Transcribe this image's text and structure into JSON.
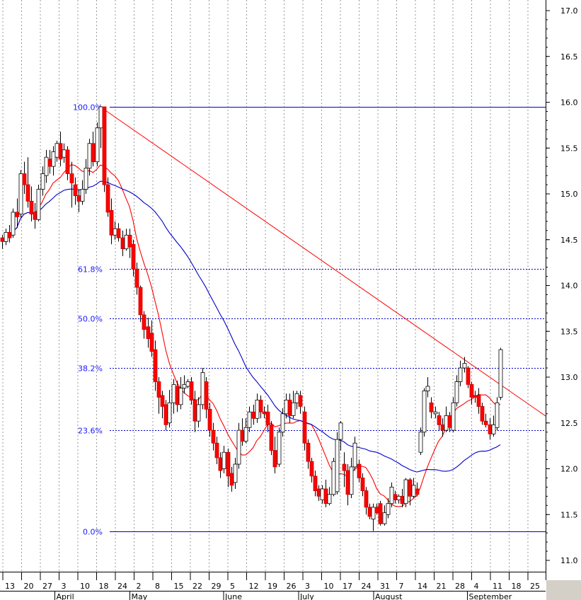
{
  "chart_data": {
    "type": "candlestick",
    "y_axis": {
      "ylim": [
        10.8,
        17.05
      ],
      "ticks": [
        "17.0",
        "16.5",
        "16.0",
        "15.5",
        "15.0",
        "14.5",
        "14.0",
        "13.5",
        "13.0",
        "12.5",
        "12.0",
        "11.5",
        "11.0"
      ],
      "position": "right"
    },
    "x_axis": {
      "day_ticks": [
        "13",
        "20",
        "27",
        "3",
        "10",
        "18",
        "24",
        "2",
        "8",
        "15",
        "22",
        "29",
        "5",
        "12",
        "19",
        "26",
        "3",
        "10",
        "17",
        "24",
        "31",
        "7",
        "14",
        "21",
        "28",
        "4",
        "11",
        "18",
        "25"
      ],
      "months": [
        {
          "label": "April",
          "at_tick": 3
        },
        {
          "label": "May",
          "at_tick": 7
        },
        {
          "label": "June",
          "at_tick": 12
        },
        {
          "label": "July",
          "at_tick": 16
        },
        {
          "label": "August",
          "at_tick": 20
        },
        {
          "label": "September",
          "at_tick": 25
        }
      ]
    },
    "grid": "vertical dotted at each weekly tick",
    "fibonacci": {
      "high": 15.95,
      "low": 11.32,
      "levels": [
        {
          "label": "100.0%",
          "value": 15.95,
          "style": "solid"
        },
        {
          "label": "61.8%",
          "value": 14.18,
          "style": "dotted"
        },
        {
          "label": "50.0%",
          "value": 13.64,
          "style": "dotted"
        },
        {
          "label": "38.2%",
          "value": 13.1,
          "style": "dotted"
        },
        {
          "label": "23.6%",
          "value": 12.42,
          "style": "dotted"
        },
        {
          "label": "0.0%",
          "value": 11.32,
          "style": "solid"
        }
      ]
    },
    "trendline": {
      "from": 15.95,
      "to_slope_per_day": -0.0277,
      "color": "#ff0000"
    },
    "candles": [
      [
        14.52,
        14.48,
        14.55,
        14.4
      ],
      [
        14.48,
        14.58,
        14.62,
        14.44
      ],
      [
        14.58,
        14.52,
        14.66,
        14.47
      ],
      [
        14.55,
        14.8,
        14.84,
        14.52
      ],
      [
        14.8,
        14.75,
        14.95,
        14.63
      ],
      [
        14.78,
        15.22,
        15.26,
        14.74
      ],
      [
        15.22,
        15.1,
        15.35,
        15.0
      ],
      [
        15.1,
        14.92,
        15.4,
        14.85
      ],
      [
        14.92,
        14.78,
        15.08,
        14.7
      ],
      [
        14.8,
        14.72,
        14.9,
        14.62
      ],
      [
        14.72,
        15.05,
        15.1,
        14.7
      ],
      [
        15.05,
        15.22,
        15.3,
        14.98
      ],
      [
        15.2,
        15.4,
        15.48,
        15.12
      ],
      [
        15.38,
        15.3,
        15.48,
        15.22
      ],
      [
        15.3,
        15.46,
        15.52,
        15.2
      ],
      [
        15.4,
        15.55,
        15.58,
        15.35
      ],
      [
        15.55,
        15.38,
        15.68,
        15.3
      ],
      [
        15.4,
        15.48,
        15.55,
        15.34
      ],
      [
        15.48,
        15.22,
        15.52,
        15.15
      ],
      [
        15.22,
        15.12,
        15.35,
        14.85
      ],
      [
        15.1,
        14.98,
        15.18,
        14.88
      ],
      [
        14.98,
        14.92,
        15.05,
        14.8
      ],
      [
        14.92,
        15.05,
        15.15,
        14.88
      ],
      [
        15.05,
        15.28,
        15.38,
        15.0
      ],
      [
        15.28,
        15.55,
        15.6,
        15.2
      ],
      [
        15.55,
        15.35,
        15.68,
        15.3
      ],
      [
        15.35,
        15.72,
        15.78,
        15.3
      ],
      [
        15.72,
        15.95,
        15.96,
        15.5
      ],
      [
        15.95,
        15.1,
        15.95,
        15.02
      ],
      [
        15.1,
        14.8,
        15.18,
        14.75
      ],
      [
        14.82,
        14.55,
        14.95,
        14.45
      ],
      [
        14.55,
        14.62,
        14.7,
        14.5
      ],
      [
        14.62,
        14.52,
        14.68,
        14.48
      ],
      [
        14.52,
        14.4,
        14.6,
        14.32
      ],
      [
        14.4,
        14.55,
        14.62,
        14.38
      ],
      [
        14.55,
        14.42,
        14.62,
        14.3
      ],
      [
        14.45,
        14.18,
        14.5,
        14.1
      ],
      [
        14.18,
        13.98,
        14.25,
        13.9
      ],
      [
        13.98,
        13.68,
        14.0,
        13.6
      ],
      [
        13.68,
        13.52,
        13.72,
        13.42
      ],
      [
        13.55,
        13.42,
        13.65,
        13.32
      ],
      [
        13.48,
        13.28,
        13.62,
        13.22
      ],
      [
        13.3,
        12.95,
        13.4,
        12.85
      ],
      [
        12.95,
        12.78,
        13.0,
        12.6
      ],
      [
        12.8,
        12.68,
        12.85,
        12.55
      ],
      [
        12.7,
        12.48,
        12.75,
        12.42
      ],
      [
        12.5,
        12.72,
        12.86,
        12.45
      ],
      [
        12.72,
        12.92,
        12.98,
        12.6
      ],
      [
        12.9,
        12.7,
        12.96,
        12.62
      ],
      [
        12.7,
        12.88,
        13.0,
        12.65
      ],
      [
        12.88,
        12.92,
        13.02,
        12.82
      ],
      [
        12.9,
        12.95,
        12.98,
        12.88
      ],
      [
        12.95,
        12.75,
        13.0,
        12.7
      ],
      [
        12.75,
        12.52,
        12.85,
        12.4
      ],
      [
        12.52,
        12.7,
        12.78,
        12.45
      ],
      [
        12.7,
        13.05,
        13.1,
        12.65
      ],
      [
        12.95,
        12.65,
        13.0,
        12.55
      ],
      [
        12.65,
        12.42,
        12.72,
        12.35
      ],
      [
        12.42,
        12.28,
        12.5,
        12.2
      ],
      [
        12.28,
        12.12,
        12.35,
        12.05
      ],
      [
        12.12,
        11.98,
        12.18,
        11.9
      ],
      [
        12.0,
        12.18,
        12.25,
        11.95
      ],
      [
        12.18,
        11.92,
        12.22,
        11.8
      ],
      [
        11.95,
        11.82,
        12.02,
        11.75
      ],
      [
        11.85,
        12.05,
        12.12,
        11.78
      ],
      [
        12.05,
        12.42,
        12.5,
        12.0
      ],
      [
        12.42,
        12.3,
        12.55,
        12.25
      ],
      [
        12.3,
        12.45,
        12.55,
        12.28
      ],
      [
        12.45,
        12.62,
        12.68,
        12.4
      ],
      [
        12.62,
        12.55,
        12.7,
        12.48
      ],
      [
        12.55,
        12.75,
        12.82,
        12.5
      ],
      [
        12.75,
        12.62,
        12.8,
        12.55
      ],
      [
        12.62,
        12.6,
        12.68,
        12.55
      ],
      [
        12.62,
        12.48,
        12.7,
        12.4
      ],
      [
        12.48,
        12.2,
        12.52,
        12.15
      ],
      [
        12.2,
        12.02,
        12.35,
        11.95
      ],
      [
        12.05,
        12.4,
        12.45,
        12.02
      ],
      [
        12.4,
        12.6,
        12.66,
        12.35
      ],
      [
        12.6,
        12.75,
        12.82,
        12.55
      ],
      [
        12.75,
        12.58,
        12.82,
        12.5
      ],
      [
        12.58,
        12.72,
        12.85,
        12.55
      ],
      [
        12.72,
        12.82,
        12.85,
        12.65
      ],
      [
        12.8,
        12.68,
        12.85,
        12.6
      ],
      [
        12.62,
        12.28,
        12.68,
        12.2
      ],
      [
        12.28,
        12.08,
        12.32,
        12.0
      ],
      [
        12.08,
        11.92,
        12.12,
        11.85
      ],
      [
        11.92,
        11.76,
        11.98,
        11.7
      ],
      [
        11.78,
        11.7,
        11.82,
        11.65
      ],
      [
        11.66,
        11.78,
        11.82,
        11.62
      ],
      [
        11.78,
        11.62,
        11.88,
        11.58
      ],
      [
        11.62,
        11.72,
        11.8,
        11.6
      ],
      [
        11.72,
        12.08,
        12.12,
        11.7
      ],
      [
        11.75,
        12.32,
        12.4,
        11.72
      ],
      [
        12.32,
        12.5,
        12.52,
        12.2
      ],
      [
        12.05,
        11.98,
        12.18,
        11.8
      ],
      [
        11.98,
        11.72,
        12.05,
        11.6
      ],
      [
        11.72,
        12.02,
        12.12,
        11.68
      ],
      [
        12.02,
        12.28,
        12.35,
        11.98
      ],
      [
        12.05,
        11.9,
        12.1,
        11.85
      ],
      [
        11.9,
        11.76,
        11.95,
        11.7
      ],
      [
        11.76,
        11.58,
        11.8,
        11.5
      ],
      [
        11.58,
        11.48,
        11.62,
        11.45
      ],
      [
        11.45,
        11.58,
        11.62,
        11.32
      ],
      [
        11.58,
        11.52,
        11.62,
        11.5
      ],
      [
        11.62,
        11.4,
        11.65,
        11.38
      ],
      [
        11.4,
        11.52,
        11.6,
        11.38
      ],
      [
        11.5,
        11.62,
        11.68,
        11.46
      ],
      [
        11.62,
        11.8,
        11.85,
        11.58
      ],
      [
        11.72,
        11.66,
        11.76,
        11.62
      ],
      [
        11.66,
        11.7,
        11.72,
        11.62
      ],
      [
        11.7,
        11.62,
        11.78,
        11.58
      ],
      [
        11.62,
        11.88,
        11.9,
        11.58
      ],
      [
        11.88,
        11.7,
        11.9,
        11.6
      ],
      [
        11.7,
        11.82,
        11.9,
        11.68
      ],
      [
        11.78,
        11.72,
        11.85,
        11.7
      ],
      [
        12.18,
        12.4,
        12.45,
        12.15
      ],
      [
        12.4,
        12.85,
        12.88,
        12.35
      ],
      [
        12.85,
        12.9,
        13.0,
        12.78
      ],
      [
        12.72,
        12.62,
        12.78,
        12.55
      ],
      [
        12.6,
        12.62,
        12.68,
        12.55
      ],
      [
        12.58,
        12.48,
        12.62,
        12.42
      ],
      [
        12.48,
        12.42,
        12.55,
        12.35
      ],
      [
        12.42,
        12.58,
        12.68,
        12.4
      ],
      [
        12.58,
        12.45,
        12.62,
        12.4
      ],
      [
        12.42,
        12.72,
        12.78,
        12.4
      ],
      [
        12.72,
        12.95,
        13.02,
        12.68
      ],
      [
        12.95,
        13.1,
        13.18,
        12.9
      ],
      [
        13.1,
        13.15,
        13.22,
        13.05
      ],
      [
        13.1,
        12.92,
        13.12,
        12.88
      ],
      [
        12.92,
        12.78,
        12.95,
        12.7
      ],
      [
        12.8,
        12.78,
        12.85,
        12.72
      ],
      [
        12.8,
        12.68,
        12.88,
        12.6
      ],
      [
        12.68,
        12.52,
        12.72,
        12.48
      ],
      [
        12.52,
        12.48,
        12.6,
        12.45
      ],
      [
        12.48,
        12.38,
        12.55,
        12.32
      ],
      [
        12.38,
        12.48,
        12.58,
        12.35
      ],
      [
        12.45,
        12.72,
        12.78,
        12.42
      ],
      [
        12.78,
        13.3,
        13.32,
        12.75
      ]
    ],
    "moving_averages": [
      {
        "color": "#ff0000",
        "period_label": "short"
      },
      {
        "color": "#0000cc",
        "period_label": "long"
      }
    ]
  }
}
